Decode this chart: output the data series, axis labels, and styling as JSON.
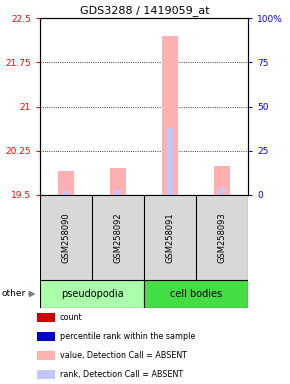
{
  "title": "GDS3288 / 1419059_at",
  "samples": [
    "GSM258090",
    "GSM258092",
    "GSM258091",
    "GSM258093"
  ],
  "ylim_left": [
    19.5,
    22.5
  ],
  "ylim_right": [
    0,
    100
  ],
  "yticks_left": [
    19.5,
    20.25,
    21.0,
    21.75,
    22.5
  ],
  "yticks_right": [
    0,
    25,
    50,
    75,
    100
  ],
  "ytick_labels_left": [
    "19.5",
    "20.25",
    "21",
    "21.75",
    "22.5"
  ],
  "ytick_labels_right": [
    "0",
    "25",
    "50",
    "75",
    "100%"
  ],
  "bar_values": [
    19.9,
    19.95,
    22.2,
    20.0
  ],
  "rank_values": [
    2,
    3,
    38,
    4
  ],
  "bar_color_absent": "#ffb0b0",
  "rank_color_absent": "#c0c8ff",
  "baseline": 19.5,
  "group_colors": {
    "pseudopodia": "#aaffaa",
    "cell bodies": "#44dd44"
  },
  "legend_items": [
    {
      "color": "#cc0000",
      "label": "count"
    },
    {
      "color": "#0000cc",
      "label": "percentile rank within the sample"
    },
    {
      "color": "#ffb0b0",
      "label": "value, Detection Call = ABSENT"
    },
    {
      "color": "#c0c8ff",
      "label": "rank, Detection Call = ABSENT"
    }
  ],
  "other_label": "other",
  "fig_width": 2.9,
  "fig_height": 3.84,
  "dpi": 100
}
